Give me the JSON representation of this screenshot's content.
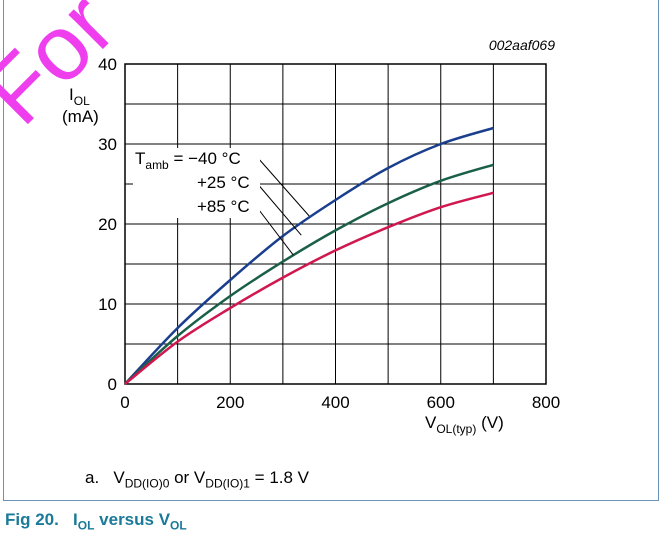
{
  "watermark": "For Tong",
  "figure": {
    "id": "002aaf069",
    "caption_prefix": "a.",
    "caption": "V_DD(IO)0 or V_DD(IO)1 = 1.8 V",
    "caption_parts": [
      "V",
      "DD(IO)0",
      " or V",
      "DD(IO)1",
      " = 1.8 V"
    ],
    "title": "Fig 20. I_OL versus V_OL",
    "title_parts": [
      "Fig 20.",
      "I",
      "OL",
      " versus V",
      "OL"
    ]
  },
  "chart_data": {
    "type": "line",
    "ylabel": "I_OL (mA)",
    "ylabel_parts": [
      "I",
      "OL",
      "(mA)"
    ],
    "xlabel": "V_OL(typ) (V)",
    "xlabel_parts": [
      "V",
      "OL(typ)",
      " (V)"
    ],
    "xlim": [
      0,
      800
    ],
    "ylim": [
      0,
      40
    ],
    "xticks": [
      0,
      200,
      400,
      600,
      800
    ],
    "yticks": [
      0,
      10,
      20,
      30,
      40
    ],
    "grid": true,
    "legend_title_parts": [
      "T",
      "amb",
      " = −40 °C"
    ],
    "series": [
      {
        "name": "T_amb = −40 °C",
        "label": "−40 °C",
        "color": "#1a3f8f",
        "x": [
          0,
          100,
          200,
          300,
          400,
          500,
          600,
          700
        ],
        "y": [
          0,
          7,
          13,
          18.5,
          23,
          27,
          30,
          32
        ]
      },
      {
        "name": "+25 °C",
        "label": "+25 °C",
        "color": "#1a6048",
        "x": [
          0,
          100,
          200,
          300,
          400,
          500,
          600,
          700
        ],
        "y": [
          0,
          6,
          11,
          15.3,
          19.2,
          22.6,
          25.4,
          27.4
        ]
      },
      {
        "name": "+85 °C",
        "label": "+85 °C",
        "color": "#d0174f",
        "x": [
          0,
          100,
          200,
          300,
          400,
          500,
          600,
          700
        ],
        "y": [
          0,
          5.3,
          9.5,
          13.3,
          16.7,
          19.6,
          22.1,
          23.9
        ]
      }
    ]
  }
}
